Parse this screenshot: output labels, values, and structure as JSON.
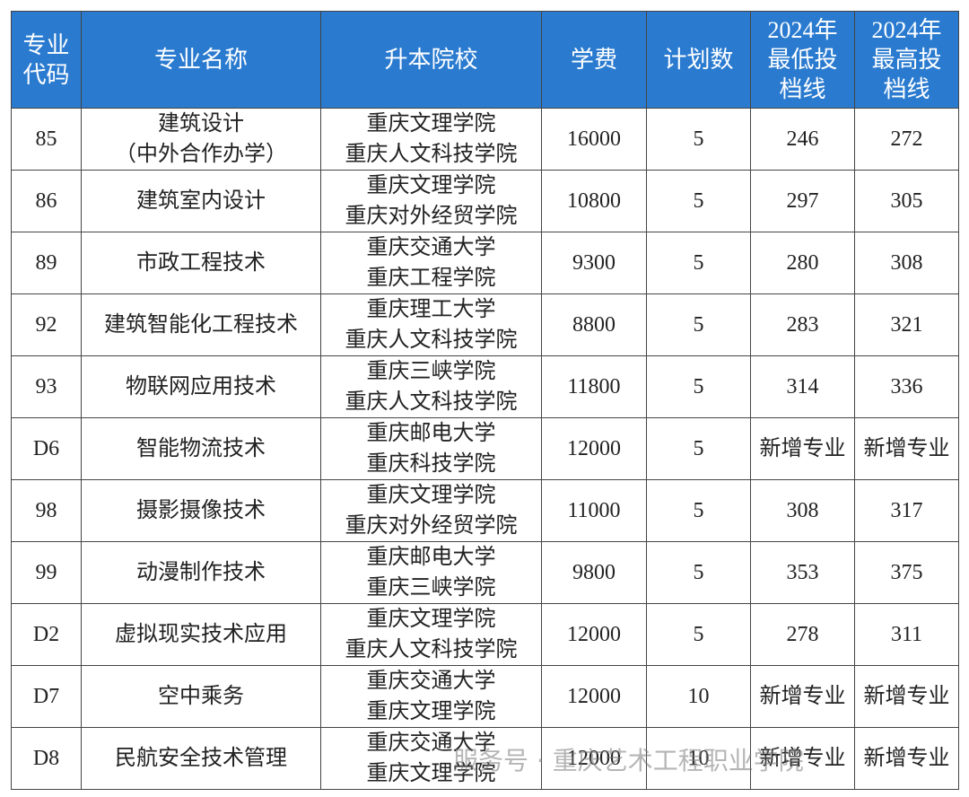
{
  "table": {
    "header": [
      "专业代码",
      "专业名称",
      "升本院校",
      "学费",
      "计划数",
      "2024年最低投档线",
      "2024年最高投档线"
    ],
    "rows": [
      [
        "85",
        "建筑设计\n（中外合作办学）",
        "重庆文理学院\n重庆人文科技学院",
        "16000",
        "5",
        "246",
        "272"
      ],
      [
        "86",
        "建筑室内设计",
        "重庆文理学院\n重庆对外经贸学院",
        "10800",
        "5",
        "297",
        "305"
      ],
      [
        "89",
        "市政工程技术",
        "重庆交通大学\n重庆工程学院",
        "9300",
        "5",
        "280",
        "308"
      ],
      [
        "92",
        "建筑智能化工程技术",
        "重庆理工大学\n重庆人文科技学院",
        "8800",
        "5",
        "283",
        "321"
      ],
      [
        "93",
        "物联网应用技术",
        "重庆三峡学院\n重庆人文科技学院",
        "11800",
        "5",
        "314",
        "336"
      ],
      [
        "D6",
        "智能物流技术",
        "重庆邮电大学\n重庆科技学院",
        "12000",
        "5",
        "新增专业",
        "新增专业"
      ],
      [
        "98",
        "摄影摄像技术",
        "重庆文理学院\n重庆对外经贸学院",
        "11000",
        "5",
        "308",
        "317"
      ],
      [
        "99",
        "动漫制作技术",
        "重庆邮电大学\n重庆三峡学院",
        "9800",
        "5",
        "353",
        "375"
      ],
      [
        "D2",
        "虚拟现实技术应用",
        "重庆文理学院\n重庆人文科技学院",
        "12000",
        "5",
        "278",
        "311"
      ],
      [
        "D7",
        "空中乘务",
        "重庆交通大学\n重庆文理学院",
        "12000",
        "10",
        "新增专业",
        "新增专业"
      ],
      [
        "D8",
        "民航安全技术管理",
        "重庆交通大学\n重庆文理学院",
        "12000",
        "10",
        "新增专业",
        "新增专业"
      ]
    ]
  },
  "watermark": "服务号 · 重庆艺术工程职业学院"
}
